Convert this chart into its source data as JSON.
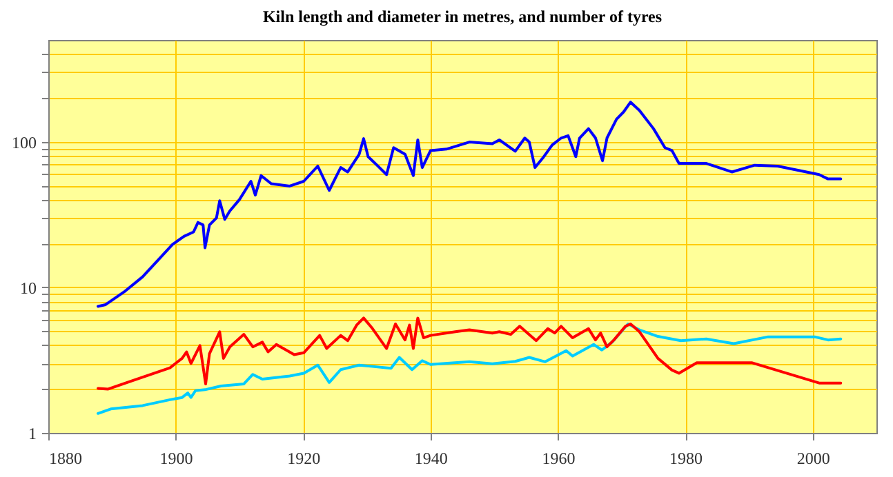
{
  "chart_data": {
    "type": "line",
    "title": "Kiln length and diameter in metres, and number of tyres",
    "log": "y",
    "grid": true,
    "xlim": [
      1880,
      2010
    ],
    "xticks": [
      1880,
      1900,
      1920,
      1940,
      1960,
      1980,
      2000
    ],
    "ylim": [
      1,
      500
    ],
    "yticks": [
      1,
      {
        "value": 2,
        "label": null
      },
      {
        "value": 3,
        "label": null
      },
      {
        "value": 4,
        "label": null
      },
      {
        "value": 5,
        "label": null
      },
      {
        "value": 6,
        "label": null
      },
      {
        "value": 7,
        "label": null
      },
      {
        "value": 8,
        "label": null
      },
      {
        "value": 9,
        "label": null
      },
      10,
      {
        "value": 20,
        "label": null
      },
      {
        "value": 30,
        "label": null
      },
      {
        "value": 40,
        "label": null
      },
      {
        "value": 50,
        "label": null
      },
      {
        "value": 60,
        "label": null
      },
      {
        "value": 70,
        "label": null
      },
      {
        "value": 80,
        "label": null
      },
      {
        "value": 90,
        "label": null
      },
      100,
      {
        "value": 200,
        "label": null
      },
      {
        "value": 300,
        "label": null
      },
      {
        "value": 400,
        "label": null
      }
    ],
    "series": [
      {
        "color": "#0000ff",
        "x": [
          1887.8,
          1889.0,
          1891.9,
          1894.8,
          1897.0,
          1899.5,
          1901.3,
          1902.8,
          1903.5,
          1904.3,
          1904.6,
          1905.3,
          1906.4,
          1906.9,
          1907.7,
          1908.5,
          1910.0,
          1911.8,
          1912.5,
          1913.4,
          1915.0,
          1917.9,
          1920.1,
          1922.3,
          1924.1,
          1925.9,
          1927.0,
          1928.8,
          1929.5,
          1930.2,
          1931.6,
          1933.1,
          1934.2,
          1936.0,
          1937.3,
          1938.0,
          1938.7,
          1940.0,
          1942.5,
          1946.1,
          1949.7,
          1950.8,
          1953.3,
          1954.8,
          1955.5,
          1956.4,
          1957.6,
          1959.1,
          1960.5,
          1961.6,
          1962.8,
          1963.4,
          1964.8,
          1965.9,
          1967.0,
          1967.7,
          1969.2,
          1970.3,
          1971.4,
          1972.8,
          1975.0,
          1976.8,
          1977.9,
          1979.0,
          1983.3,
          1987.3,
          1990.9,
          1994.5,
          2001.0,
          2002.4,
          2004.4
        ],
        "values": [
          7.4,
          7.6,
          9.3,
          11.8,
          15,
          19.7,
          22.4,
          24,
          27.9,
          26.8,
          18.7,
          26.8,
          30,
          39.3,
          29.3,
          33.5,
          40,
          53.5,
          43,
          58.5,
          51.5,
          49.6,
          53.5,
          68,
          46.3,
          66.5,
          62,
          82,
          105,
          79,
          69,
          59.5,
          91,
          82,
          58.5,
          103,
          66.5,
          87,
          89,
          99.5,
          97,
          103,
          86,
          106,
          99.5,
          66.5,
          77,
          95,
          106,
          110,
          79,
          106,
          123,
          106,
          74,
          106,
          143,
          160,
          187,
          164,
          123,
          91,
          87,
          71,
          71,
          62,
          69,
          68,
          59.5,
          55.5,
          55.5
        ]
      },
      {
        "color": "#00ccff",
        "x": [
          1887.8,
          1889.8,
          1894.8,
          1899.1,
          1901.0,
          1901.9,
          1902.4,
          1903.1,
          1904.6,
          1907.1,
          1910.7,
          1912.1,
          1913.6,
          1915.0,
          1917.9,
          1920.1,
          1922.3,
          1924.1,
          1925.9,
          1928.8,
          1930.9,
          1933.8,
          1935.1,
          1937.1,
          1938.7,
          1940.0,
          1946.1,
          1949.7,
          1953.3,
          1955.5,
          1958.0,
          1961.3,
          1962.3,
          1965.6,
          1966.9,
          1968.5,
          1971.0,
          1972.8,
          1975.7,
          1979.3,
          1983.3,
          1987.6,
          1993.0,
          2000.3,
          2002.4,
          2004.4
        ],
        "values": [
          1.36,
          1.46,
          1.54,
          1.69,
          1.75,
          1.88,
          1.75,
          1.95,
          1.98,
          2.1,
          2.17,
          2.52,
          2.34,
          2.38,
          2.46,
          2.57,
          2.92,
          2.22,
          2.72,
          2.92,
          2.86,
          2.78,
          3.3,
          2.72,
          3.13,
          2.95,
          3.08,
          2.98,
          3.1,
          3.3,
          3.08,
          3.67,
          3.37,
          4.05,
          3.71,
          4.2,
          5.6,
          5.1,
          4.6,
          4.3,
          4.42,
          4.1,
          4.57,
          4.57,
          4.35,
          4.42
        ]
      },
      {
        "color": "#ff0000",
        "x": [
          1887.8,
          1889.4,
          1893.4,
          1899.1,
          1901.0,
          1901.7,
          1902.4,
          1903.8,
          1904.7,
          1905.3,
          1906.9,
          1907.5,
          1908.5,
          1910.7,
          1912.1,
          1913.6,
          1914.5,
          1915.8,
          1918.6,
          1920.1,
          1922.6,
          1923.7,
          1925.9,
          1927.0,
          1928.4,
          1929.5,
          1930.9,
          1933.1,
          1934.5,
          1936.0,
          1936.7,
          1937.3,
          1938.0,
          1938.9,
          1940.0,
          1943.9,
          1946.1,
          1949.7,
          1950.8,
          1952.6,
          1954.0,
          1956.6,
          1958.4,
          1959.5,
          1960.5,
          1962.3,
          1964.8,
          1965.9,
          1966.7,
          1967.7,
          1968.8,
          1970.6,
          1971.4,
          1972.8,
          1975.7,
          1977.9,
          1979.0,
          1981.8,
          1990.5,
          2001.0,
          2004.4
        ],
        "values": [
          2.02,
          2,
          2.3,
          2.8,
          3.25,
          3.6,
          3,
          3.98,
          2.17,
          3.5,
          4.95,
          3.25,
          3.9,
          4.75,
          3.9,
          4.2,
          3.6,
          4.05,
          3.45,
          3.55,
          4.67,
          3.8,
          4.67,
          4.3,
          5.5,
          6.15,
          5.2,
          3.8,
          5.6,
          4.35,
          5.5,
          3.8,
          6.15,
          4.5,
          4.67,
          4.95,
          5.1,
          4.85,
          4.95,
          4.75,
          5.4,
          4.3,
          5.2,
          4.85,
          5.4,
          4.5,
          5.2,
          4.35,
          4.85,
          3.9,
          4.35,
          5.4,
          5.6,
          4.95,
          3.25,
          2.7,
          2.57,
          3.03,
          3.03,
          2.2,
          2.2
        ]
      }
    ]
  }
}
